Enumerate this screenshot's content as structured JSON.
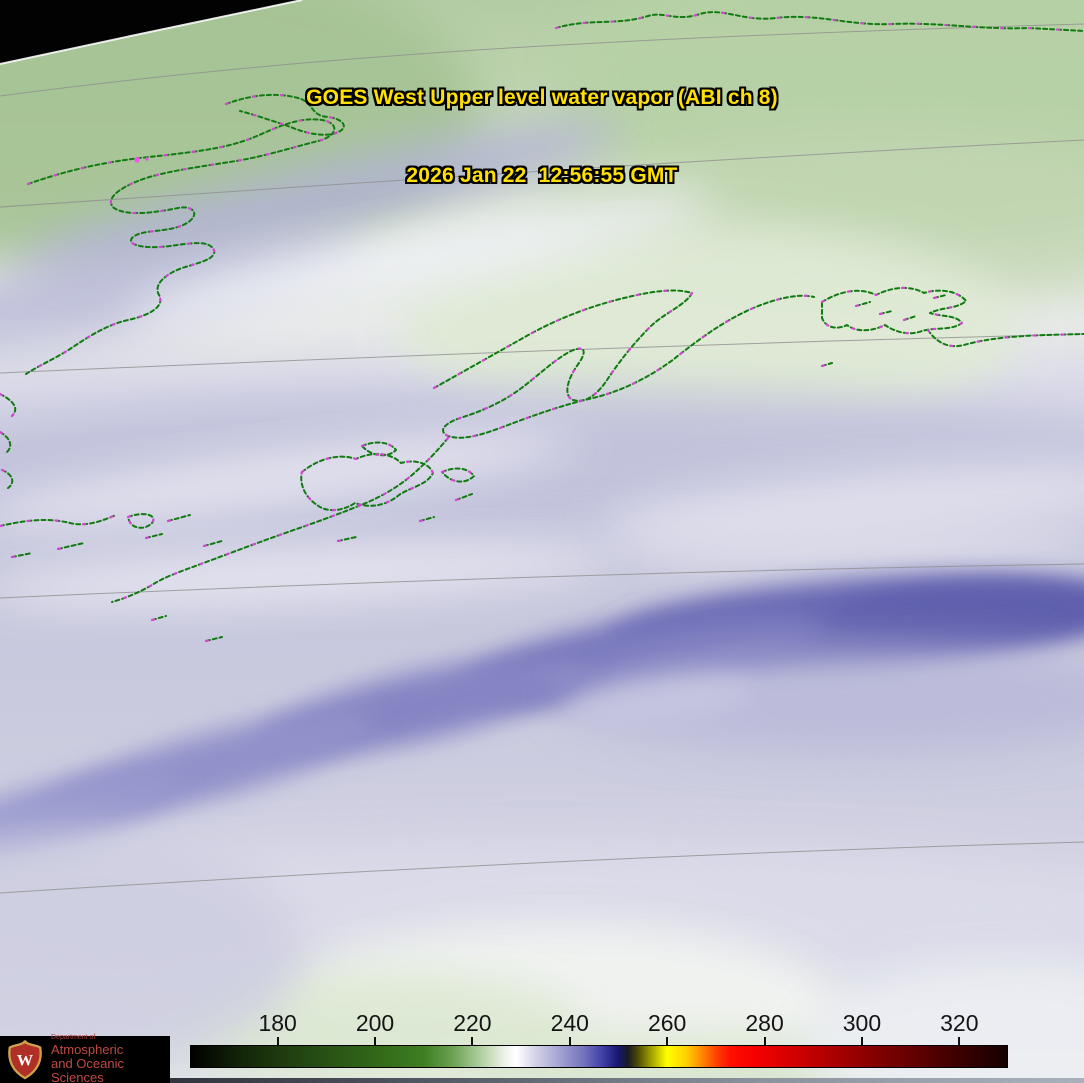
{
  "title": {
    "line1": "GOES West Upper level water vapor (ABI ch 8)",
    "line2": "2026 Jan 22  12:56:55 GMT",
    "text_color": "#ffe000"
  },
  "colorbar": {
    "tick_labels": [
      "180",
      "200",
      "220",
      "240",
      "260",
      "280",
      "300",
      "320"
    ],
    "tick_values": [
      180,
      200,
      220,
      240,
      260,
      280,
      300,
      320
    ],
    "scale_min": 162,
    "scale_max": 330,
    "gradient_stops": [
      {
        "v": 162,
        "c": "#000000"
      },
      {
        "v": 172,
        "c": "#122408"
      },
      {
        "v": 182,
        "c": "#1f3f10"
      },
      {
        "v": 192,
        "c": "#2a5616"
      },
      {
        "v": 202,
        "c": "#336c1a"
      },
      {
        "v": 210,
        "c": "#3f7f22"
      },
      {
        "v": 216,
        "c": "#6da253"
      },
      {
        "v": 222,
        "c": "#b5d2a6"
      },
      {
        "v": 227,
        "c": "#f2f5ee"
      },
      {
        "v": 229,
        "c": "#ffffff"
      },
      {
        "v": 233,
        "c": "#d2d2e8"
      },
      {
        "v": 238,
        "c": "#a2a2d2"
      },
      {
        "v": 243,
        "c": "#7171bd"
      },
      {
        "v": 247,
        "c": "#3b3ba5"
      },
      {
        "v": 250,
        "c": "#17176e"
      },
      {
        "v": 252,
        "c": "#1a1a22"
      },
      {
        "v": 254,
        "c": "#4c4c06"
      },
      {
        "v": 257,
        "c": "#a8a800"
      },
      {
        "v": 260,
        "c": "#ffff00"
      },
      {
        "v": 264,
        "c": "#ffd000"
      },
      {
        "v": 267,
        "c": "#ff8c00"
      },
      {
        "v": 270,
        "c": "#ff4400"
      },
      {
        "v": 273,
        "c": "#ff0f00"
      },
      {
        "v": 278,
        "c": "#f60000"
      },
      {
        "v": 285,
        "c": "#d60000"
      },
      {
        "v": 295,
        "c": "#a80000"
      },
      {
        "v": 305,
        "c": "#7a0000"
      },
      {
        "v": 315,
        "c": "#500000"
      },
      {
        "v": 323,
        "c": "#300000"
      },
      {
        "v": 330,
        "c": "#160000"
      }
    ]
  },
  "logo": {
    "dept_line": "Department of",
    "name_line1": "Atmospheric",
    "name_line2": "and Oceanic Sciences",
    "crest_letter": "W",
    "text_color": "#c04a42"
  },
  "map": {
    "region": "Alaska / Gulf of Alaska",
    "palette": {
      "land_outline": "#117a11",
      "outline_dots": "#dd44dd",
      "grid_line": "#8f8f8f",
      "dry_green": "#aecb9d",
      "moist_white": "#ffffff",
      "mid_lavender": "#c6c6de",
      "cold_band_blue": "#6565b2",
      "off_earth_black": "#000000"
    }
  }
}
